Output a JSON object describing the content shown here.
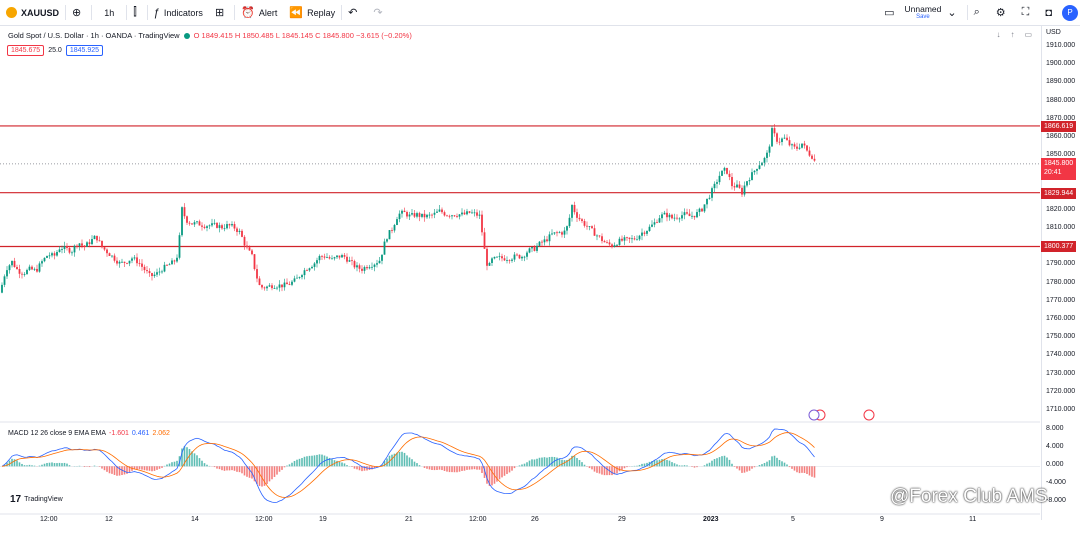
{
  "toolbar": {
    "symbol": "XAUUSD",
    "interval": "1h",
    "indicators": "Indicators",
    "alert": "Alert",
    "replay": "Replay",
    "layout_name": "Unnamed",
    "layout_status": "Save",
    "publish_initial": "P"
  },
  "legend": {
    "title": "Gold Spot / U.S. Dollar · 1h · OANDA · TradingView",
    "ohlc": "O 1849.415  H 1850.485  L 1845.145  C 1845.800 −3.615 (−0.20%)",
    "bid": "1845.675",
    "spread": "25.0",
    "ask": "1845.925"
  },
  "axis": {
    "currency": "USD",
    "ticks": [
      "1910.000",
      "1900.000",
      "1890.000",
      "1880.000",
      "1870.000",
      "1860.000",
      "1850.000",
      "1840.000",
      "1830.000",
      "1820.000",
      "1810.000",
      "1800.000",
      "1790.000",
      "1780.000",
      "1770.000",
      "1760.000",
      "1750.000",
      "1740.000",
      "1730.000",
      "1720.000",
      "1710.000"
    ],
    "tag_resistance": "1866.619",
    "tag_price": "1845.800",
    "tag_countdown": "20:41",
    "tag_mid": "1829.944",
    "tag_support": "1800.377",
    "macd_ticks": [
      "8.000",
      "4.000",
      "0.000",
      "-4.000",
      "-8.000"
    ]
  },
  "macd": {
    "label": "MACD 12 26 close 9 EMA EMA",
    "v1": "-1.601",
    "v2": "0.461",
    "v3": "2.062"
  },
  "time_axis": [
    "12:00",
    "12",
    "14",
    "12:00",
    "19",
    "21",
    "12:00",
    "26",
    "29",
    "2023",
    "5",
    "9",
    "11"
  ],
  "branding": "TradingView",
  "watermark": "@Forex Club AMS",
  "colors": {
    "up": "#089981",
    "down": "#f23645",
    "hline": "#d1232a",
    "macd": "#2962ff",
    "signal": "#ff6d00"
  },
  "chart_data": {
    "type": "candlestick",
    "title": "Gold Spot / U.S. Dollar · 1h · OANDA",
    "y_range": [
      1705,
      1915
    ],
    "horizontal_lines": [
      1866.619,
      1829.944,
      1800.377
    ],
    "last_price": 1845.8,
    "close_path": [
      [
        0,
        1775
      ],
      [
        6,
        1788
      ],
      [
        12,
        1792
      ],
      [
        18,
        1787
      ],
      [
        24,
        1786
      ],
      [
        30,
        1788
      ],
      [
        36,
        1787
      ],
      [
        42,
        1792
      ],
      [
        48,
        1796
      ],
      [
        54,
        1795
      ],
      [
        60,
        1800
      ],
      [
        66,
        1799
      ],
      [
        72,
        1798
      ],
      [
        78,
        1803
      ],
      [
        84,
        1800
      ],
      [
        90,
        1803
      ],
      [
        96,
        1806
      ],
      [
        102,
        1800
      ],
      [
        108,
        1797
      ],
      [
        114,
        1794
      ],
      [
        120,
        1791
      ],
      [
        126,
        1792
      ],
      [
        132,
        1794
      ],
      [
        138,
        1792
      ],
      [
        144,
        1788
      ],
      [
        150,
        1784
      ],
      [
        156,
        1785
      ],
      [
        162,
        1788
      ],
      [
        168,
        1790
      ],
      [
        174,
        1792
      ],
      [
        178,
        1796
      ],
      [
        182,
        1821
      ],
      [
        186,
        1815
      ],
      [
        192,
        1813
      ],
      [
        198,
        1813
      ],
      [
        204,
        1812
      ],
      [
        210,
        1812
      ],
      [
        216,
        1812
      ],
      [
        222,
        1811
      ],
      [
        228,
        1812
      ],
      [
        234,
        1811
      ],
      [
        240,
        1808
      ],
      [
        246,
        1800
      ],
      [
        252,
        1795
      ],
      [
        256,
        1785
      ],
      [
        260,
        1778
      ],
      [
        266,
        1778
      ],
      [
        272,
        1779
      ],
      [
        278,
        1779
      ],
      [
        284,
        1779
      ],
      [
        290,
        1780
      ],
      [
        296,
        1782
      ],
      [
        302,
        1786
      ],
      [
        308,
        1789
      ],
      [
        314,
        1791
      ],
      [
        320,
        1795
      ],
      [
        326,
        1795
      ],
      [
        332,
        1793
      ],
      [
        338,
        1795
      ],
      [
        344,
        1795
      ],
      [
        350,
        1792
      ],
      [
        356,
        1789
      ],
      [
        362,
        1788
      ],
      [
        368,
        1790
      ],
      [
        374,
        1791
      ],
      [
        380,
        1793
      ],
      [
        386,
        1805
      ],
      [
        392,
        1810
      ],
      [
        398,
        1818
      ],
      [
        404,
        1819
      ],
      [
        410,
        1817
      ],
      [
        416,
        1818
      ],
      [
        422,
        1817
      ],
      [
        428,
        1817
      ],
      [
        434,
        1818
      ],
      [
        440,
        1820
      ],
      [
        446,
        1818
      ],
      [
        452,
        1818
      ],
      [
        458,
        1818
      ],
      [
        464,
        1818
      ],
      [
        470,
        1819
      ],
      [
        476,
        1818
      ],
      [
        480,
        1817
      ],
      [
        484,
        1800
      ],
      [
        488,
        1788
      ],
      [
        492,
        1793
      ],
      [
        498,
        1794
      ],
      [
        504,
        1794
      ],
      [
        510,
        1794
      ],
      [
        516,
        1795
      ],
      [
        522,
        1795
      ],
      [
        528,
        1798
      ],
      [
        534,
        1799
      ],
      [
        540,
        1802
      ],
      [
        546,
        1804
      ],
      [
        552,
        1807
      ],
      [
        558,
        1808
      ],
      [
        564,
        1808
      ],
      [
        568,
        1812
      ],
      [
        572,
        1823
      ],
      [
        576,
        1818
      ],
      [
        582,
        1814
      ],
      [
        588,
        1811
      ],
      [
        594,
        1808
      ],
      [
        600,
        1805
      ],
      [
        606,
        1802
      ],
      [
        612,
        1801
      ],
      [
        618,
        1803
      ],
      [
        624,
        1804
      ],
      [
        630,
        1804
      ],
      [
        636,
        1805
      ],
      [
        642,
        1808
      ],
      [
        648,
        1810
      ],
      [
        654,
        1813
      ],
      [
        660,
        1817
      ],
      [
        666,
        1818
      ],
      [
        672,
        1816
      ],
      [
        678,
        1817
      ],
      [
        684,
        1818
      ],
      [
        690,
        1817
      ],
      [
        696,
        1818
      ],
      [
        702,
        1821
      ],
      [
        708,
        1827
      ],
      [
        714,
        1833
      ],
      [
        720,
        1840
      ],
      [
        726,
        1843
      ],
      [
        732,
        1834
      ],
      [
        738,
        1833
      ],
      [
        742,
        1830
      ],
      [
        746,
        1836
      ],
      [
        752,
        1840
      ],
      [
        758,
        1845
      ],
      [
        764,
        1848
      ],
      [
        768,
        1852
      ],
      [
        772,
        1864
      ],
      [
        778,
        1858
      ],
      [
        784,
        1860
      ],
      [
        790,
        1856
      ],
      [
        796,
        1854
      ],
      [
        802,
        1857
      ],
      [
        808,
        1852
      ],
      [
        812,
        1850
      ],
      [
        816,
        1846
      ]
    ],
    "macd_range": [
      -8.8,
      8.5
    ]
  }
}
